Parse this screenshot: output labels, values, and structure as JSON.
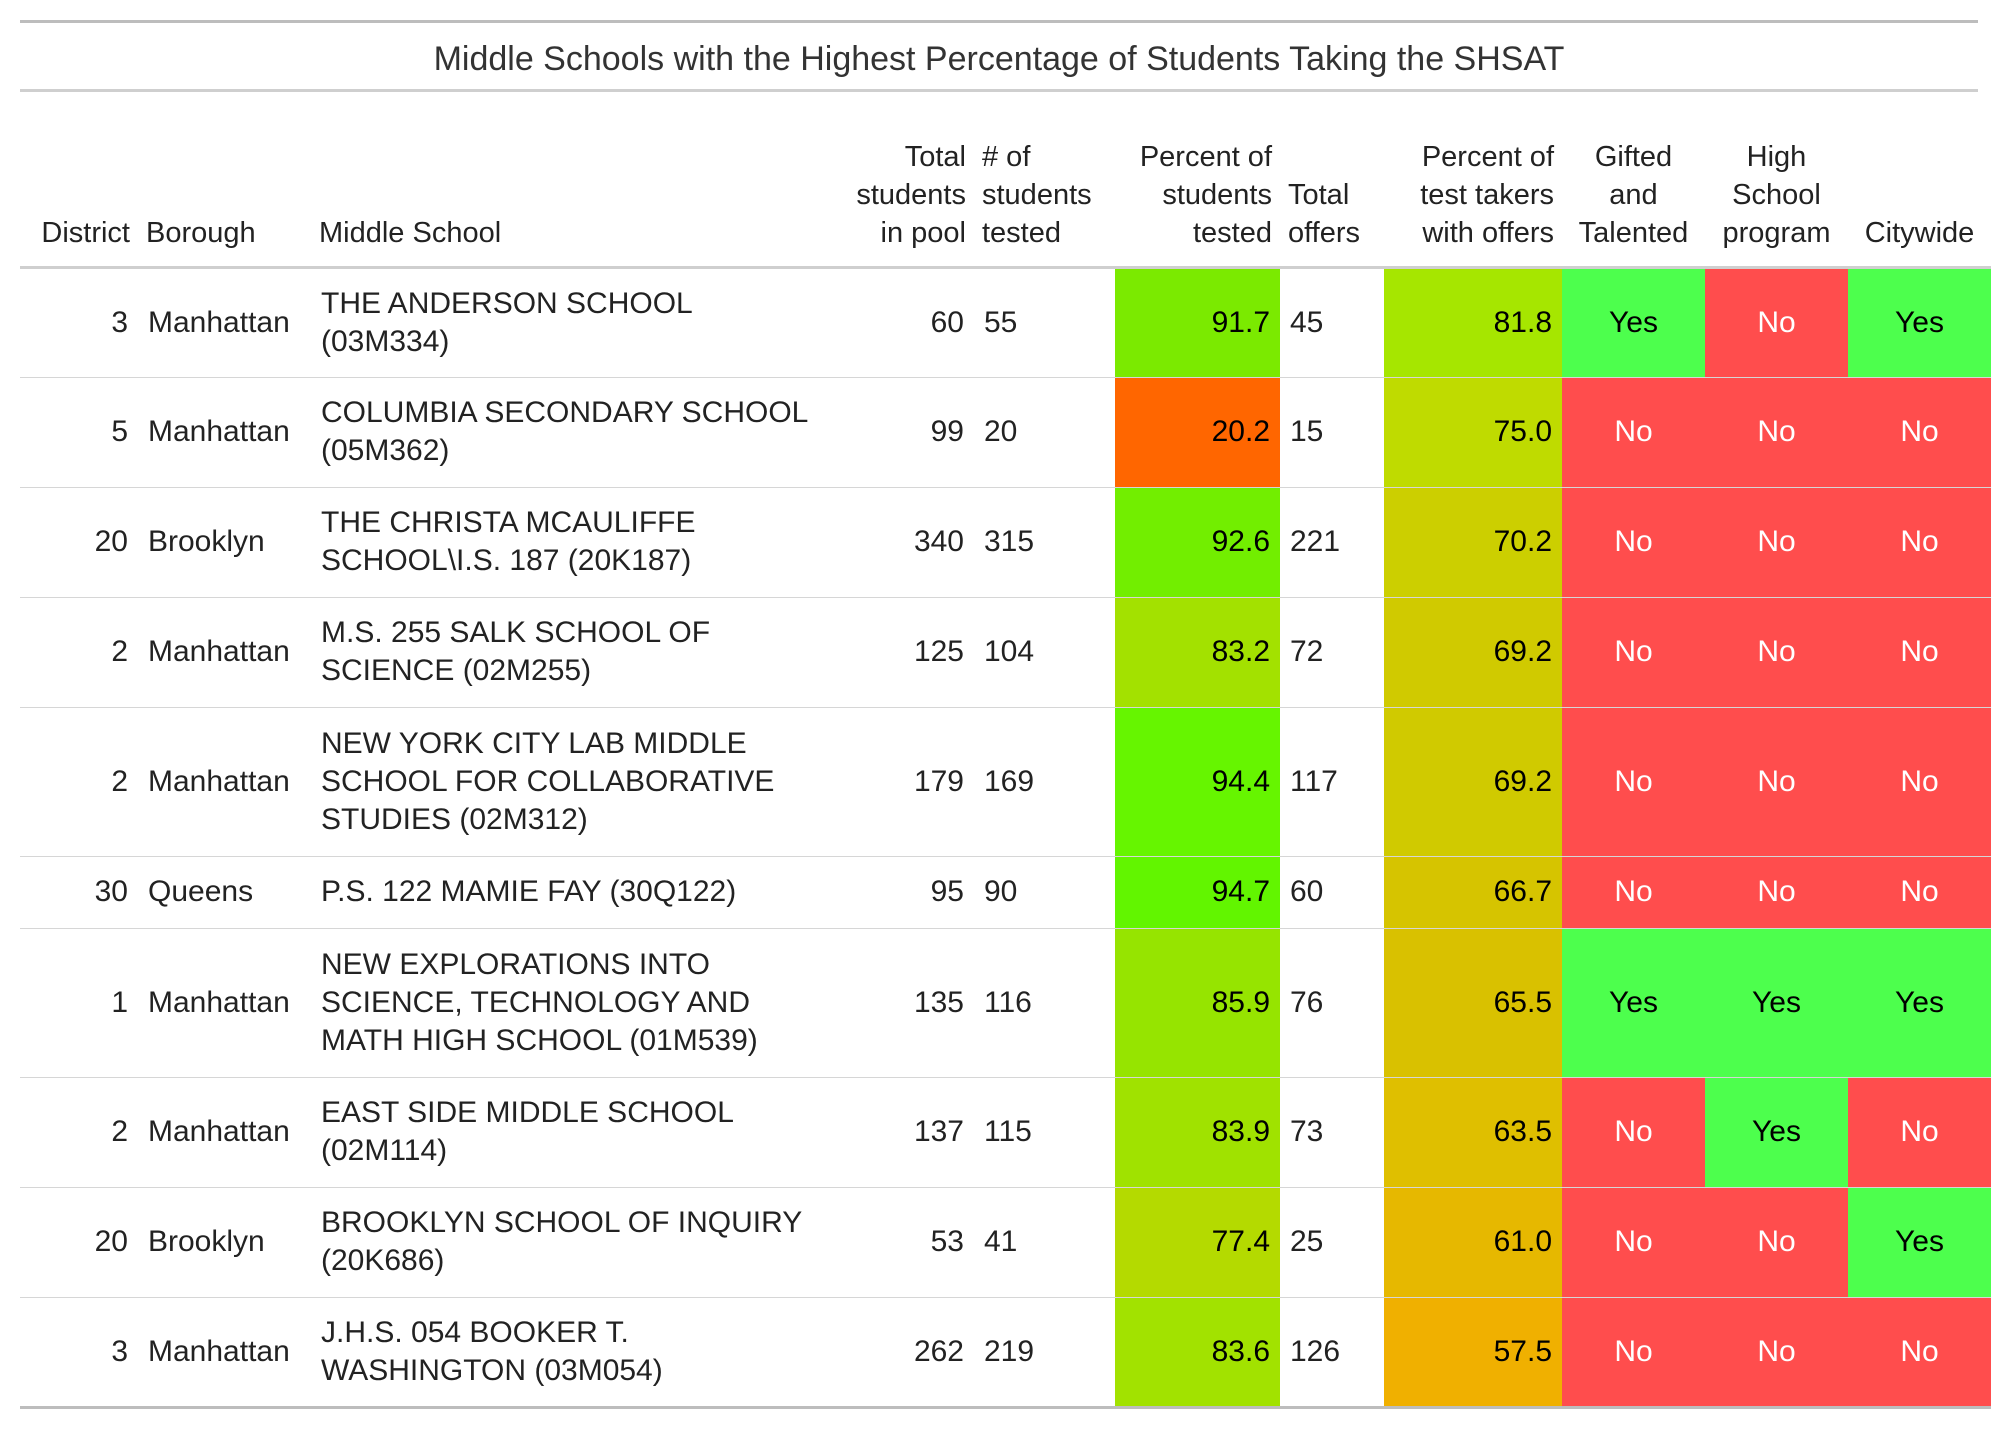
{
  "title": "Middle Schools with the Highest Percentage of Students Taking the SHSAT",
  "columns": [
    "District",
    "Borough",
    "Middle School",
    "Total students in pool",
    "# of students tested",
    "Percent of students tested",
    "Total offers",
    "Percent of test takers with offers",
    "Gifted and Talented",
    "High School program",
    "Citywide"
  ],
  "colors": {
    "yes": "#4dff4d",
    "no": "#ff4d4d",
    "pct_tested_scale": [
      "#ff6600",
      "#66ff00"
    ],
    "pct_offers_scale": [
      "#f0b000",
      "#a8e600"
    ]
  },
  "chart_data": {
    "type": "table",
    "title": "Middle Schools with the Highest Percentage of Students Taking the SHSAT",
    "rows": [
      {
        "district": "3",
        "borough": "Manhattan",
        "school": "THE ANDERSON SCHOOL (03M334)",
        "pool": "60",
        "tested": "55",
        "pct_tested": "91.7",
        "offers": "45",
        "pct_offers": "81.8",
        "gt": "Yes",
        "hs": "No",
        "cw": "Yes",
        "tested_color": "#7bea00",
        "offers_color": "#a6e600"
      },
      {
        "district": "5",
        "borough": "Manhattan",
        "school": "COLUMBIA SECONDARY SCHOOL (05M362)",
        "pool": "99",
        "tested": "20",
        "pct_tested": "20.2",
        "offers": "15",
        "pct_offers": "75.0",
        "gt": "No",
        "hs": "No",
        "cw": "No",
        "tested_color": "#ff6600",
        "offers_color": "#bfdb00"
      },
      {
        "district": "20",
        "borough": "Brooklyn",
        "school": "THE CHRISTA MCAULIFFE SCHOOL\\I.S. 187 (20K187)",
        "pool": "340",
        "tested": "315",
        "pct_tested": "92.6",
        "offers": "221",
        "pct_offers": "70.2",
        "gt": "No",
        "hs": "No",
        "cw": "No",
        "tested_color": "#72ee00",
        "offers_color": "#cccf00"
      },
      {
        "district": "2",
        "borough": "Manhattan",
        "school": "M.S. 255 SALK SCHOOL OF SCIENCE (02M255)",
        "pool": "125",
        "tested": "104",
        "pct_tested": "83.2",
        "offers": "72",
        "pct_offers": "69.2",
        "gt": "No",
        "hs": "No",
        "cw": "No",
        "tested_color": "#a3e100",
        "offers_color": "#d0ca00"
      },
      {
        "district": "2",
        "borough": "Manhattan",
        "school": "NEW YORK CITY LAB MIDDLE SCHOOL FOR COLLABORATIVE STUDIES (02M312)",
        "pool": "179",
        "tested": "169",
        "pct_tested": "94.4",
        "offers": "117",
        "pct_offers": "69.2",
        "gt": "No",
        "hs": "No",
        "cw": "No",
        "tested_color": "#66f500",
        "offers_color": "#d0ca00"
      },
      {
        "district": "30",
        "borough": "Queens",
        "school": "P.S. 122 MAMIE FAY (30Q122)",
        "pool": "95",
        "tested": "90",
        "pct_tested": "94.7",
        "offers": "60",
        "pct_offers": "66.7",
        "gt": "No",
        "hs": "No",
        "cw": "No",
        "tested_color": "#62f500",
        "offers_color": "#d6c400"
      },
      {
        "district": "1",
        "borough": "Manhattan",
        "school": "NEW EXPLORATIONS INTO SCIENCE, TECHNOLOGY AND MATH HIGH SCHOOL (01M539)",
        "pool": "135",
        "tested": "116",
        "pct_tested": "85.9",
        "offers": "76",
        "pct_offers": "65.5",
        "gt": "Yes",
        "hs": "Yes",
        "cw": "Yes",
        "tested_color": "#96e400",
        "offers_color": "#d9c100"
      },
      {
        "district": "2",
        "borough": "Manhattan",
        "school": "EAST SIDE MIDDLE SCHOOL (02M114)",
        "pool": "137",
        "tested": "115",
        "pct_tested": "83.9",
        "offers": "73",
        "pct_offers": "63.5",
        "gt": "No",
        "hs": "Yes",
        "cw": "No",
        "tested_color": "#a0e200",
        "offers_color": "#dfbf00"
      },
      {
        "district": "20",
        "borough": "Brooklyn",
        "school": "BROOKLYN SCHOOL OF INQUIRY (20K686)",
        "pool": "53",
        "tested": "41",
        "pct_tested": "77.4",
        "offers": "25",
        "pct_offers": "61.0",
        "gt": "No",
        "hs": "No",
        "cw": "Yes",
        "tested_color": "#b4da00",
        "offers_color": "#e6b800"
      },
      {
        "district": "3",
        "borough": "Manhattan",
        "school": "J.H.S. 054 BOOKER T. WASHINGTON (03M054)",
        "pool": "262",
        "tested": "219",
        "pct_tested": "83.6",
        "offers": "126",
        "pct_offers": "57.5",
        "gt": "No",
        "hs": "No",
        "cw": "No",
        "tested_color": "#a2e200",
        "offers_color": "#f0b000"
      }
    ]
  }
}
